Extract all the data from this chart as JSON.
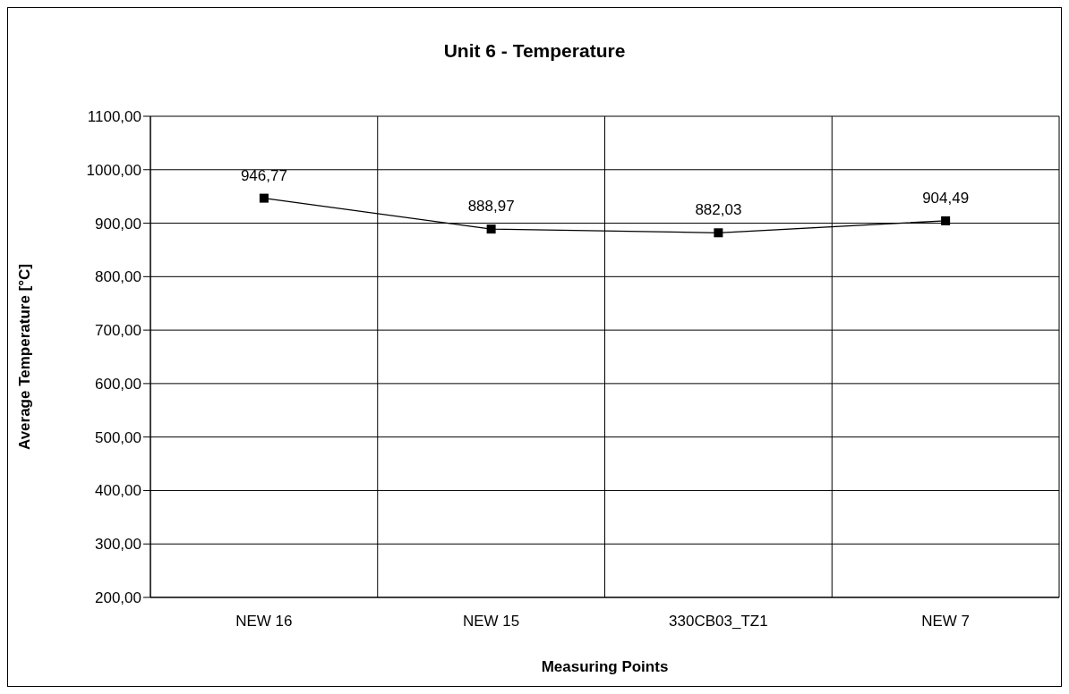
{
  "chart_data": {
    "type": "line",
    "title": "Unit 6 - Temperature",
    "xlabel": "Measuring Points",
    "ylabel": "Average Temperature [°C]",
    "categories": [
      "NEW 16",
      "NEW 15",
      "330CB03_TZ1",
      "NEW 7"
    ],
    "series": [
      {
        "color": "#000000",
        "values": [
          946.77,
          888.97,
          882.03,
          904.49
        ],
        "value_labels": [
          "946,77",
          "888,97",
          "882,03",
          "904,49"
        ]
      }
    ],
    "ylim": [
      200,
      1100
    ],
    "yticks": [
      {
        "value": 200,
        "label": "200,00"
      },
      {
        "value": 300,
        "label": "300,00"
      },
      {
        "value": 400,
        "label": "400,00"
      },
      {
        "value": 500,
        "label": "500,00"
      },
      {
        "value": 600,
        "label": "600,00"
      },
      {
        "value": 700,
        "label": "700,00"
      },
      {
        "value": 800,
        "label": "800,00"
      },
      {
        "value": 900,
        "label": "900,00"
      },
      {
        "value": 1000,
        "label": "1000,00"
      },
      {
        "value": 1100,
        "label": "1100,00"
      }
    ],
    "grid": true,
    "marker": "square",
    "line_style": "solid"
  }
}
